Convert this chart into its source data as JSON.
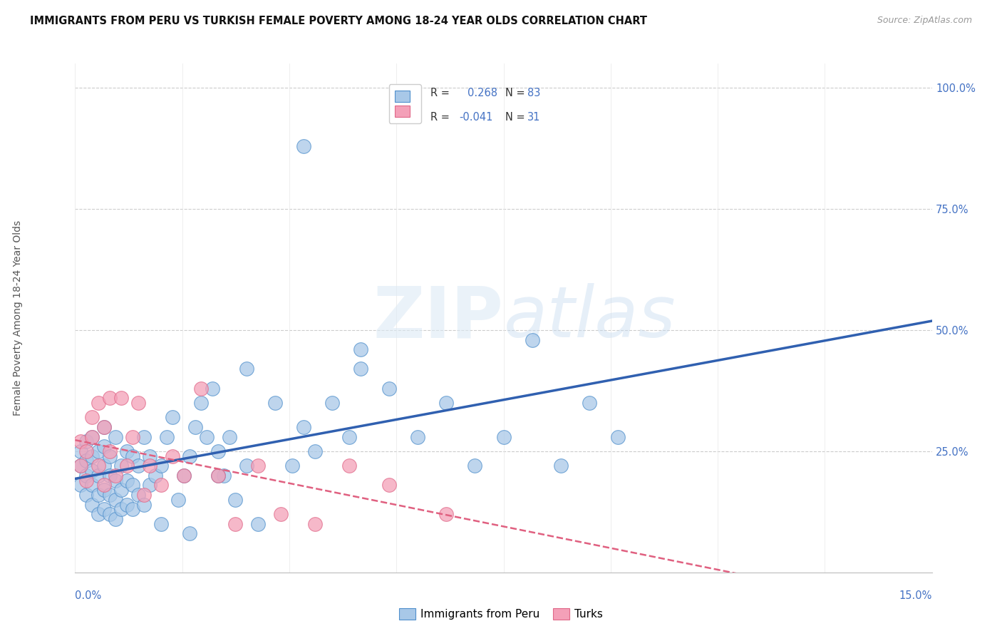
{
  "title": "IMMIGRANTS FROM PERU VS TURKISH FEMALE POVERTY AMONG 18-24 YEAR OLDS CORRELATION CHART",
  "source": "Source: ZipAtlas.com",
  "ylabel": "Female Poverty Among 18-24 Year Olds",
  "legend_label1": "Immigrants from Peru",
  "legend_label2": "Turks",
  "R1": "0.268",
  "N1": "83",
  "R2": "-0.041",
  "N2": "31",
  "color_blue": "#A8C8E8",
  "color_pink": "#F4A0B8",
  "edge_blue": "#5090CC",
  "edge_pink": "#E06888",
  "reg_blue": "#3060B0",
  "reg_pink": "#E06080",
  "watermark_color": "#D8E8F0",
  "xmin": 0.0,
  "xmax": 0.15,
  "ymin": 0.0,
  "ymax": 1.05,
  "right_yticks": [
    0.25,
    0.5,
    0.75,
    1.0
  ],
  "right_yticklabels": [
    "25.0%",
    "50.0%",
    "75.0%",
    "100.0%"
  ],
  "bottom_right_label": "15.0%",
  "blue_x": [
    0.001,
    0.001,
    0.001,
    0.002,
    0.002,
    0.002,
    0.002,
    0.003,
    0.003,
    0.003,
    0.003,
    0.003,
    0.004,
    0.004,
    0.004,
    0.004,
    0.005,
    0.005,
    0.005,
    0.005,
    0.005,
    0.006,
    0.006,
    0.006,
    0.006,
    0.007,
    0.007,
    0.007,
    0.007,
    0.008,
    0.008,
    0.008,
    0.009,
    0.009,
    0.009,
    0.01,
    0.01,
    0.01,
    0.011,
    0.011,
    0.012,
    0.012,
    0.013,
    0.013,
    0.014,
    0.015,
    0.015,
    0.016,
    0.017,
    0.018,
    0.019,
    0.02,
    0.021,
    0.022,
    0.023,
    0.024,
    0.025,
    0.026,
    0.027,
    0.028,
    0.03,
    0.032,
    0.035,
    0.038,
    0.04,
    0.042,
    0.045,
    0.048,
    0.05,
    0.055,
    0.06,
    0.065,
    0.07,
    0.075,
    0.08,
    0.085,
    0.09,
    0.095,
    0.04,
    0.05,
    0.03,
    0.025,
    0.02
  ],
  "blue_y": [
    0.22,
    0.18,
    0.25,
    0.2,
    0.16,
    0.23,
    0.27,
    0.14,
    0.18,
    0.21,
    0.24,
    0.28,
    0.12,
    0.16,
    0.2,
    0.25,
    0.13,
    0.17,
    0.22,
    0.26,
    0.3,
    0.12,
    0.16,
    0.2,
    0.24,
    0.11,
    0.15,
    0.19,
    0.28,
    0.13,
    0.17,
    0.22,
    0.14,
    0.19,
    0.25,
    0.13,
    0.18,
    0.24,
    0.16,
    0.22,
    0.14,
    0.28,
    0.18,
    0.24,
    0.2,
    0.1,
    0.22,
    0.28,
    0.32,
    0.15,
    0.2,
    0.24,
    0.3,
    0.35,
    0.28,
    0.38,
    0.25,
    0.2,
    0.28,
    0.15,
    0.22,
    0.1,
    0.35,
    0.22,
    0.3,
    0.25,
    0.35,
    0.28,
    0.42,
    0.38,
    0.28,
    0.35,
    0.22,
    0.28,
    0.48,
    0.22,
    0.35,
    0.28,
    0.88,
    0.46,
    0.42,
    0.2,
    0.08
  ],
  "pink_x": [
    0.001,
    0.001,
    0.002,
    0.002,
    0.003,
    0.003,
    0.004,
    0.004,
    0.005,
    0.005,
    0.006,
    0.006,
    0.007,
    0.008,
    0.009,
    0.01,
    0.011,
    0.012,
    0.013,
    0.015,
    0.017,
    0.019,
    0.022,
    0.025,
    0.028,
    0.032,
    0.036,
    0.042,
    0.048,
    0.055,
    0.065
  ],
  "pink_y": [
    0.22,
    0.27,
    0.19,
    0.25,
    0.28,
    0.32,
    0.35,
    0.22,
    0.3,
    0.18,
    0.25,
    0.36,
    0.2,
    0.36,
    0.22,
    0.28,
    0.35,
    0.16,
    0.22,
    0.18,
    0.24,
    0.2,
    0.38,
    0.2,
    0.1,
    0.22,
    0.12,
    0.1,
    0.22,
    0.18,
    0.12
  ]
}
